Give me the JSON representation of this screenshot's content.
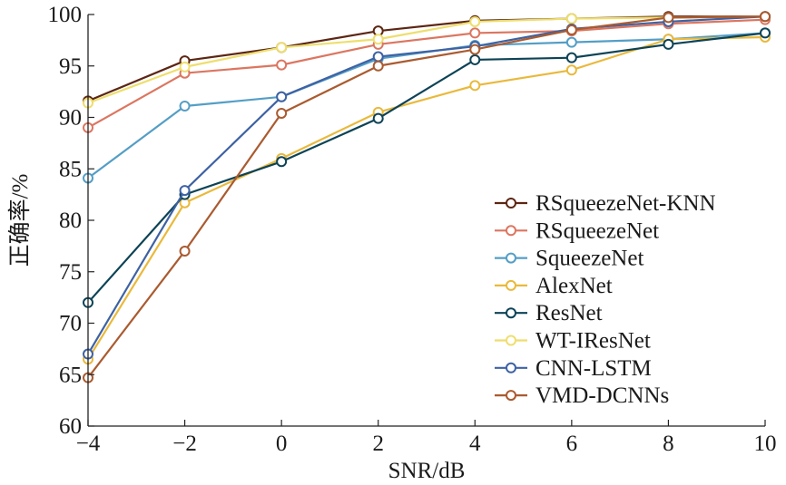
{
  "chart_data": {
    "type": "line",
    "title": "",
    "xlabel": "SNR/dB",
    "ylabel": "正确率/%",
    "xlim": [
      -4,
      10
    ],
    "ylim": [
      60,
      100
    ],
    "x": [
      -4,
      -2,
      0,
      2,
      4,
      6,
      8,
      10
    ],
    "x_tick_labels": [
      "−4",
      "−2",
      "0",
      "2",
      "4",
      "6",
      "8",
      "10"
    ],
    "y_ticks": [
      60,
      65,
      70,
      75,
      80,
      85,
      90,
      95,
      100
    ],
    "y_tick_labels": [
      "60",
      "65",
      "70",
      "75",
      "80",
      "85",
      "90",
      "95",
      "100"
    ],
    "grid": false,
    "legend_position": "center-right",
    "series": [
      {
        "name": "RSqueezeNet-KNN",
        "color": "#5c2613",
        "values": [
          91.6,
          95.5,
          96.8,
          98.4,
          99.4,
          99.6,
          99.8,
          99.8
        ]
      },
      {
        "name": "RSqueezeNet",
        "color": "#dc7660",
        "values": [
          89.0,
          94.3,
          95.1,
          97.1,
          98.2,
          98.4,
          99.1,
          99.5
        ]
      },
      {
        "name": "SqueezeNet",
        "color": "#549ec6",
        "values": [
          84.1,
          91.1,
          92.0,
          95.7,
          97.0,
          97.3,
          97.6,
          98.2
        ]
      },
      {
        "name": "AlexNet",
        "color": "#e9b93c",
        "values": [
          66.5,
          81.7,
          86.0,
          90.5,
          93.1,
          94.6,
          97.6,
          97.8
        ]
      },
      {
        "name": "ResNet",
        "color": "#0d4356",
        "values": [
          72.0,
          82.5,
          85.7,
          89.9,
          95.6,
          95.8,
          97.1,
          98.2
        ]
      },
      {
        "name": "WT-IResNet",
        "color": "#eede6e",
        "values": [
          91.4,
          94.9,
          96.8,
          97.6,
          99.3,
          99.6,
          99.7,
          99.8
        ]
      },
      {
        "name": "CNN-LSTM",
        "color": "#3e62a3",
        "values": [
          67.0,
          82.9,
          92.0,
          95.9,
          96.9,
          98.6,
          99.3,
          99.8
        ]
      },
      {
        "name": "VMD-DCNNs",
        "color": "#aa5b30",
        "values": [
          64.7,
          77.0,
          90.4,
          95.0,
          96.6,
          98.5,
          99.7,
          99.8
        ]
      }
    ]
  }
}
